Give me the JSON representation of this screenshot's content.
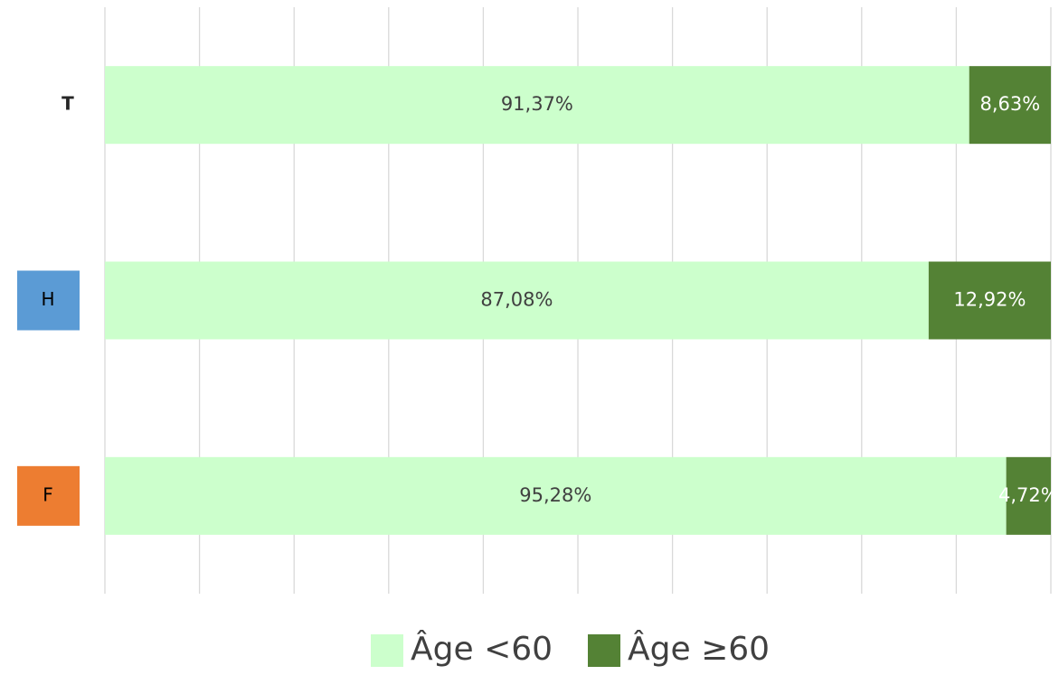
{
  "chart_data": {
    "type": "stacked-barh",
    "categories": [
      "T",
      "H",
      "F"
    ],
    "category_colors": [
      null,
      "#5b9bd5",
      "#ed7d31"
    ],
    "series": [
      {
        "name": "Âge <60",
        "color": "#ccffcc",
        "values": [
          91.37,
          87.08,
          95.28
        ],
        "value_labels": [
          "91,37%",
          "87,08%",
          "95,28%"
        ]
      },
      {
        "name": "Âge ≥60",
        "color": "#548235",
        "values": [
          8.63,
          12.92,
          4.72
        ],
        "value_labels": [
          "8,63%",
          "12,92%",
          "4,72%"
        ]
      }
    ],
    "xlim": [
      0,
      100
    ],
    "xticks": [
      0,
      10,
      20,
      30,
      40,
      50,
      60,
      70,
      80,
      90,
      100
    ],
    "grid": true,
    "legend": "bottom"
  }
}
